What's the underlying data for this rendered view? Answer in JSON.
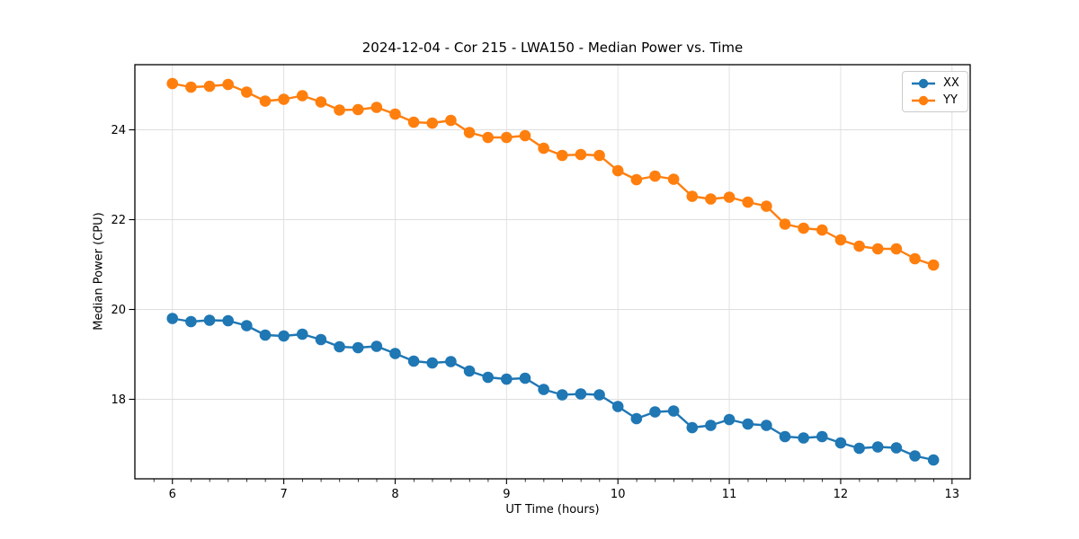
{
  "chart_data": {
    "type": "line",
    "title": "2024-12-04 - Cor 215 - LWA150 - Median Power vs. Time",
    "xlabel": "UT Time (hours)",
    "ylabel": "Median Power (CPU)",
    "xlim": [
      5.663,
      13.163
    ],
    "ylim": [
      16.23,
      25.45
    ],
    "xticks": [
      6,
      7,
      8,
      9,
      10,
      11,
      12,
      13
    ],
    "yticks": [
      18,
      20,
      22,
      24
    ],
    "x_minor_step": 0.1667,
    "grid": true,
    "legend_position": "upper right",
    "marker": "circle",
    "x": [
      6.0,
      6.1667,
      6.3333,
      6.5,
      6.6667,
      6.8333,
      7.0,
      7.1667,
      7.3333,
      7.5,
      7.6667,
      7.8333,
      8.0,
      8.1667,
      8.3333,
      8.5,
      8.6667,
      8.8333,
      9.0,
      9.1667,
      9.3333,
      9.5,
      9.6667,
      9.8333,
      10.0,
      10.1667,
      10.3333,
      10.5,
      10.6667,
      10.8333,
      11.0,
      11.1667,
      11.3333,
      11.5,
      11.6667,
      11.8333,
      12.0,
      12.1667,
      12.3333,
      12.5,
      12.6667,
      12.8333
    ],
    "series": [
      {
        "name": "XX",
        "color": "#1f77b4",
        "values": [
          19.8,
          19.73,
          19.76,
          19.75,
          19.64,
          19.43,
          19.41,
          19.45,
          19.33,
          19.17,
          19.15,
          19.18,
          19.02,
          18.85,
          18.81,
          18.84,
          18.63,
          18.49,
          18.45,
          18.47,
          18.22,
          18.1,
          18.12,
          18.1,
          17.84,
          17.57,
          17.72,
          17.74,
          17.37,
          17.42,
          17.55,
          17.45,
          17.42,
          17.17,
          17.14,
          17.17,
          17.03,
          16.91,
          16.94,
          16.92,
          16.74,
          16.65
        ]
      },
      {
        "name": "YY",
        "color": "#ff7f0e",
        "values": [
          25.03,
          24.95,
          24.97,
          25.01,
          24.84,
          24.64,
          24.68,
          24.76,
          24.62,
          24.44,
          24.45,
          24.5,
          24.35,
          24.17,
          24.15,
          24.21,
          23.94,
          23.83,
          23.83,
          23.87,
          23.59,
          23.43,
          23.45,
          23.43,
          23.09,
          22.89,
          22.97,
          22.9,
          22.52,
          22.46,
          22.5,
          22.39,
          22.3,
          21.9,
          21.81,
          21.77,
          21.55,
          21.41,
          21.35,
          21.35,
          21.13,
          20.99
        ]
      }
    ]
  },
  "style": {
    "grid_color": "#dedede",
    "axis_color": "#000000",
    "text_color": "#000000",
    "background": "#ffffff"
  }
}
